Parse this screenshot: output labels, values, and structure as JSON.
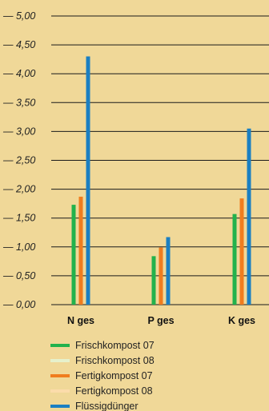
{
  "chart_data": {
    "type": "bar",
    "categories": [
      "N ges",
      "P ges",
      "K ges"
    ],
    "ylim": [
      0,
      5
    ],
    "yticks": [
      0,
      0.5,
      1,
      1.5,
      2,
      2.5,
      3,
      3.5,
      4,
      4.5,
      5
    ],
    "ytick_labels": [
      "0,00",
      "0,50",
      "1,00",
      "1,50",
      "2,00",
      "2,50",
      "3,00",
      "3,50",
      "4,00",
      "4,50",
      "5,00"
    ],
    "tick_prefix": "—",
    "grid": true,
    "legend_position": "bottom-left",
    "series": [
      {
        "name": "Frischkompost 07",
        "color": "#22b24c",
        "values": [
          1.73,
          0.84,
          1.57
        ]
      },
      {
        "name": "Frischkompost 08",
        "color": "#e6f1cc",
        "values": [
          0,
          0,
          0
        ]
      },
      {
        "name": "Fertigkompost 07",
        "color": "#f07d1e",
        "values": [
          1.87,
          0.99,
          1.84
        ]
      },
      {
        "name": "Fertigkompost 08",
        "color": "#fbdcaa",
        "values": [
          0,
          0,
          0
        ]
      },
      {
        "name": "Flüssigdünger",
        "color": "#1b7fc2",
        "values": [
          4.3,
          1.17,
          3.05
        ]
      }
    ]
  }
}
